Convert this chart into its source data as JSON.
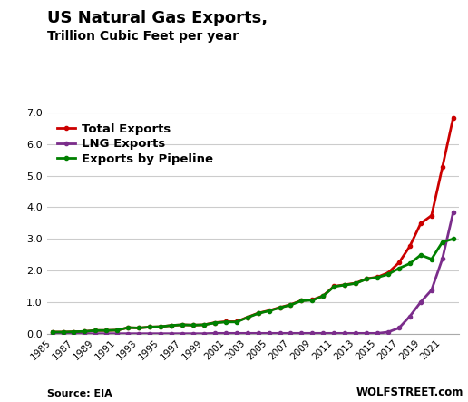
{
  "title_line1": "US Natural Gas Exports,",
  "title_line2": "Trillion Cubic Feet per year",
  "source": "Source: EIA",
  "watermark": "WOLFSTREET.com",
  "years": [
    1985,
    1986,
    1987,
    1988,
    1989,
    1990,
    1991,
    1992,
    1993,
    1994,
    1995,
    1996,
    1997,
    1998,
    1999,
    2000,
    2001,
    2002,
    2003,
    2004,
    2005,
    2006,
    2007,
    2008,
    2009,
    2010,
    2011,
    2012,
    2013,
    2014,
    2015,
    2016,
    2017,
    2018,
    2019,
    2020,
    2021,
    2022
  ],
  "total_exports": [
    0.05,
    0.05,
    0.06,
    0.07,
    0.1,
    0.1,
    0.11,
    0.19,
    0.18,
    0.21,
    0.22,
    0.26,
    0.28,
    0.27,
    0.28,
    0.35,
    0.38,
    0.38,
    0.52,
    0.65,
    0.73,
    0.83,
    0.92,
    1.05,
    1.07,
    1.2,
    1.5,
    1.55,
    1.6,
    1.74,
    1.79,
    1.93,
    2.25,
    2.77,
    3.49,
    3.74,
    5.27,
    6.84
  ],
  "lng_exports": [
    0.0,
    0.0,
    0.0,
    0.0,
    0.0,
    0.0,
    0.0,
    0.0,
    0.0,
    0.0,
    0.0,
    0.0,
    0.0,
    0.0,
    0.0,
    0.01,
    0.01,
    0.01,
    0.01,
    0.01,
    0.01,
    0.01,
    0.01,
    0.01,
    0.01,
    0.01,
    0.01,
    0.01,
    0.01,
    0.01,
    0.01,
    0.05,
    0.18,
    0.55,
    1.0,
    1.38,
    2.37,
    3.84
  ],
  "pipeline_exports": [
    0.05,
    0.05,
    0.06,
    0.07,
    0.1,
    0.1,
    0.11,
    0.19,
    0.18,
    0.21,
    0.22,
    0.26,
    0.28,
    0.27,
    0.28,
    0.34,
    0.37,
    0.37,
    0.51,
    0.64,
    0.72,
    0.82,
    0.91,
    1.04,
    1.06,
    1.19,
    1.49,
    1.54,
    1.59,
    1.73,
    1.78,
    1.88,
    2.07,
    2.22,
    2.49,
    2.36,
    2.9,
    3.0
  ],
  "total_color": "#cc0000",
  "lng_color": "#7b2d8b",
  "pipeline_color": "#008000",
  "line_width": 2.0,
  "marker": "o",
  "marker_size": 3,
  "ylim": [
    0.0,
    7.0
  ],
  "yticks": [
    0.0,
    1.0,
    2.0,
    3.0,
    4.0,
    5.0,
    6.0,
    7.0
  ],
  "background_color": "#ffffff",
  "grid_color": "#cccccc",
  "legend_fontsize": 9.5,
  "title1_fontsize": 13,
  "title2_fontsize": 10
}
